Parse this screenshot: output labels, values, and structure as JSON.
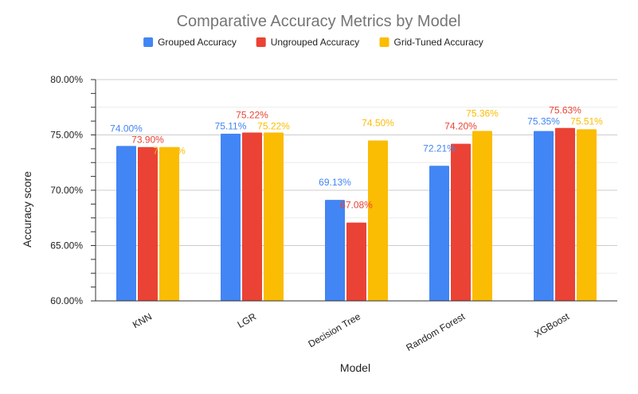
{
  "chart_data": {
    "type": "bar",
    "title": "Comparative Accuracy Metrics by Model",
    "xlabel": "Model",
    "ylabel": "Accuracy score",
    "ylim": [
      60,
      80
    ],
    "yticks": [
      "60.00%",
      "65.00%",
      "70.00%",
      "75.00%",
      "80.00%"
    ],
    "ytick_values": [
      60,
      65,
      70,
      75,
      80
    ],
    "grid": true,
    "legend_position": "top",
    "categories": [
      "KNN",
      "LGR",
      "Decision Tree",
      "Random Forest",
      "XGBoost"
    ],
    "series": [
      {
        "name": "Grouped Accuracy",
        "color": "#4285f4",
        "values": [
          74.0,
          75.11,
          69.13,
          72.21,
          75.35
        ],
        "labels": [
          "74.00%",
          "75.11%",
          "69.13%",
          "72.21%",
          "75.35%"
        ]
      },
      {
        "name": "Ungrouped Accuracy",
        "color": "#ea4335",
        "values": [
          73.9,
          75.22,
          67.08,
          74.2,
          75.63
        ],
        "labels": [
          "73.90%",
          "75.22%",
          "67.08%",
          "74.20%",
          "75.63%"
        ]
      },
      {
        "name": "Grid-Tuned Accuracy",
        "color": "#fbbc04",
        "values": [
          73.9,
          75.22,
          74.5,
          75.36,
          75.51
        ],
        "labels": [
          "73.90%",
          "75.22%",
          "74.50%",
          "75.36%",
          "75.51%"
        ]
      }
    ]
  }
}
